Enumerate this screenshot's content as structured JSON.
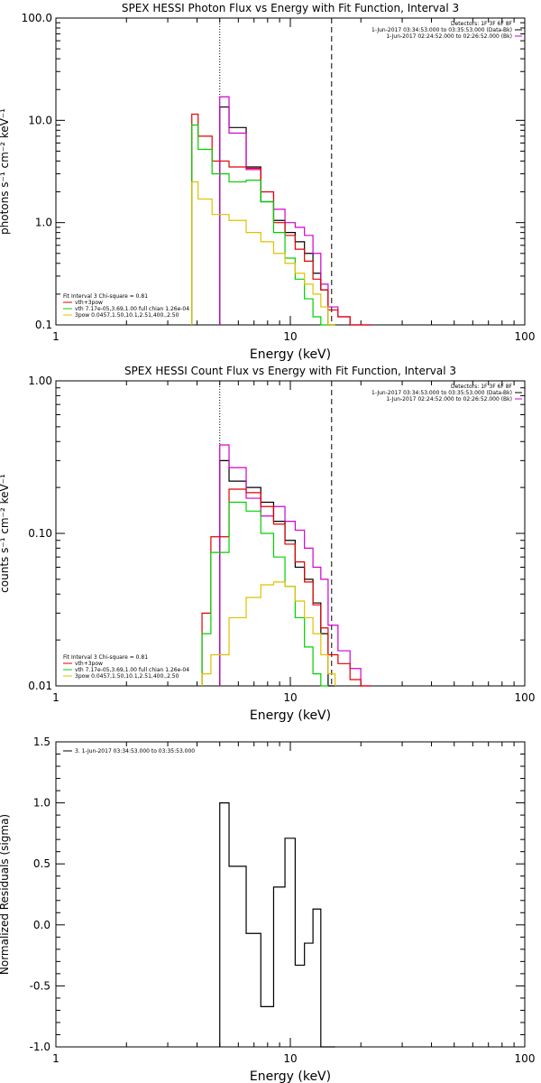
{
  "chart_data": [
    {
      "type": "line",
      "title": "SPEX HESSI Photon Flux vs Energy with Fit Function, Interval 3",
      "xlabel": "Energy (keV)",
      "ylabel": "photons s⁻¹ cm⁻² keV⁻¹",
      "xscale": "log",
      "yscale": "log",
      "xlim": [
        1,
        100
      ],
      "ylim": [
        0.1,
        100
      ],
      "x_ticks": [
        "1",
        "10",
        "100"
      ],
      "y_ticks": [
        "0.1",
        "1.0",
        "10.0",
        "100.0"
      ],
      "vlines": [
        {
          "x": 5.0,
          "style": "dotted"
        },
        {
          "x": 15.0,
          "style": "dashed"
        }
      ],
      "header": [
        "Detectors: 1F 3F 6F 8F",
        "1-Jun-2017 03:34:53.000 to 03:35:53.000 (Data-Bk)",
        "1-Jun-2017 02:24:52.000 to 02:26:52.000 (Bk)"
      ],
      "legend": [
        "Fit Interval 3   Chi-square = 0.81",
        "vth+3pow",
        "vth 7.17e-05,3.69,1.00  full chian 1.26e-04",
        "3pow 0.0457,1.50,10.1,2.51,400.,2.50"
      ],
      "series": [
        {
          "name": "data-bk",
          "color": "#000000",
          "x": [
            5,
            6,
            7,
            8,
            9,
            10,
            11,
            12,
            13,
            14,
            15
          ],
          "values": [
            13.5,
            8.5,
            3.5,
            1.6,
            1.05,
            0.8,
            0.65,
            0.5,
            0.32,
            0.22,
            0.1
          ]
        },
        {
          "name": "bk",
          "color": "#d000d0",
          "x": [
            5,
            6,
            7,
            8,
            9,
            10,
            11,
            12,
            13,
            14,
            15,
            17,
            19,
            21
          ],
          "values": [
            17.0,
            7.5,
            3.3,
            2.0,
            1.35,
            1.0,
            0.9,
            0.75,
            0.5,
            0.25,
            0.15,
            0.12,
            0.1,
            0.1
          ]
        },
        {
          "name": "vth+3pow",
          "color": "#e00000",
          "x": [
            3.8,
            4.3,
            5,
            6,
            7,
            8,
            9,
            10,
            11,
            12,
            13,
            14,
            15,
            17,
            19,
            21
          ],
          "values": [
            11.5,
            7.0,
            4.0,
            3.5,
            3.4,
            2.0,
            1.0,
            0.75,
            0.55,
            0.42,
            0.28,
            0.22,
            0.14,
            0.12,
            0.1,
            0.1
          ]
        },
        {
          "name": "vth",
          "color": "#00d000",
          "x": [
            3.8,
            4.3,
            5,
            6,
            7,
            8,
            9,
            10,
            11,
            12,
            13,
            14,
            15
          ],
          "values": [
            9.0,
            5.2,
            3.0,
            2.5,
            2.6,
            1.6,
            0.8,
            0.45,
            0.28,
            0.18,
            0.12,
            0.1,
            0.1
          ]
        },
        {
          "name": "3pow",
          "color": "#e0c000",
          "x": [
            3.8,
            4.3,
            5,
            6,
            7,
            8,
            9,
            10,
            11,
            12,
            13,
            14,
            15
          ],
          "values": [
            2.5,
            1.7,
            1.2,
            1.05,
            0.8,
            0.65,
            0.5,
            0.4,
            0.32,
            0.25,
            0.2,
            0.15,
            0.1
          ]
        }
      ]
    },
    {
      "type": "line",
      "title": "SPEX HESSI Count Flux vs Energy with Fit Function, Interval 3",
      "xlabel": "Energy (keV)",
      "ylabel": "counts s⁻¹ cm⁻² keV⁻¹",
      "xscale": "log",
      "yscale": "log",
      "xlim": [
        1,
        100
      ],
      "ylim": [
        0.01,
        1.0
      ],
      "x_ticks": [
        "1",
        "10",
        "100"
      ],
      "y_ticks": [
        "0.01",
        "0.10",
        "1.00"
      ],
      "vlines": [
        {
          "x": 5.0,
          "style": "dotted"
        },
        {
          "x": 15.0,
          "style": "dashed"
        }
      ],
      "header": [
        "Detectors: 1F 3F 6F 8F",
        "1-Jun-2017 03:34:53.000 to 03:35:53.000 (Data-Bk)",
        "1-Jun-2017 02:24:52.000 to 02:26:52.000 (Bk)"
      ],
      "legend": [
        "Fit Interval 3   Chi-square = 0.81",
        "vth+3pow",
        "vth 7.17e-05,3.69,1.00  full chian 1.26e-04",
        "3pow 0.0457,1.50,10.1,2.51,400.,2.50"
      ],
      "series": [
        {
          "name": "data-bk",
          "color": "#000000",
          "x": [
            5,
            6,
            7,
            8,
            9,
            10,
            11,
            12,
            13,
            14,
            15
          ],
          "values": [
            0.3,
            0.22,
            0.2,
            0.16,
            0.12,
            0.09,
            0.06,
            0.05,
            0.035,
            0.022,
            0.01
          ]
        },
        {
          "name": "bk",
          "color": "#d000d0",
          "x": [
            5,
            6,
            7,
            8,
            9,
            10,
            11,
            12,
            13,
            14,
            15,
            17,
            19,
            21
          ],
          "values": [
            0.38,
            0.27,
            0.17,
            0.13,
            0.15,
            0.12,
            0.105,
            0.08,
            0.06,
            0.05,
            0.025,
            0.017,
            0.013,
            0.01
          ]
        },
        {
          "name": "vth+3pow",
          "color": "#e00000",
          "x": [
            4.2,
            5,
            6,
            7,
            8,
            9,
            10,
            11,
            12,
            13,
            14,
            15,
            17,
            19,
            21
          ],
          "values": [
            0.03,
            0.095,
            0.195,
            0.185,
            0.15,
            0.115,
            0.085,
            0.065,
            0.048,
            0.034,
            0.024,
            0.016,
            0.014,
            0.011,
            0.01
          ]
        },
        {
          "name": "vth",
          "color": "#00d000",
          "x": [
            4.2,
            5,
            6,
            7,
            8,
            9,
            10,
            11,
            12,
            13,
            14
          ],
          "values": [
            0.022,
            0.075,
            0.16,
            0.14,
            0.1,
            0.07,
            0.045,
            0.028,
            0.018,
            0.012,
            0.01
          ]
        },
        {
          "name": "3pow",
          "color": "#e0c000",
          "x": [
            4.2,
            5,
            6,
            7,
            8,
            9,
            10,
            11,
            12,
            13,
            14,
            15
          ],
          "values": [
            0.012,
            0.016,
            0.028,
            0.038,
            0.046,
            0.048,
            0.045,
            0.036,
            0.028,
            0.022,
            0.016,
            0.012
          ]
        }
      ]
    },
    {
      "type": "line",
      "title": "",
      "xlabel": "Energy (keV)",
      "ylabel": "Normalized Residuals (sigma)",
      "xscale": "log",
      "yscale": "linear",
      "xlim": [
        1,
        100
      ],
      "ylim": [
        -1.0,
        1.5
      ],
      "x_ticks": [
        "1",
        "10",
        "100"
      ],
      "y_ticks": [
        "-1.0",
        "-0.5",
        "0.0",
        "0.5",
        "1.0",
        "1.5"
      ],
      "legend": [
        "3.  1-Jun-2017 03:34:53.000 to 03:35:53.000"
      ],
      "series": [
        {
          "name": "residuals",
          "color": "#000000",
          "x": [
            5,
            6,
            7,
            8,
            9,
            10,
            11,
            12,
            13,
            14,
            15
          ],
          "values": [
            1.0,
            0.48,
            -0.07,
            -0.67,
            0.31,
            0.71,
            -0.33,
            -0.15,
            0.13,
            -1.0,
            -1.0
          ]
        }
      ]
    }
  ]
}
